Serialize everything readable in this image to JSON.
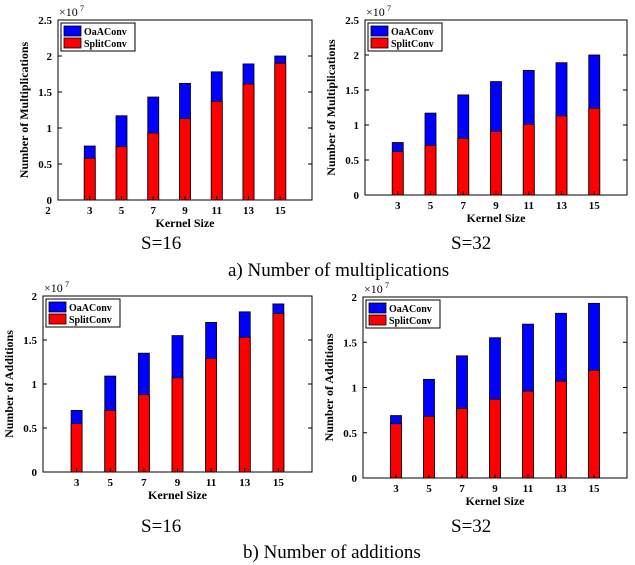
{
  "colors": {
    "oaaconv": "#0000ff",
    "splitconv": "#ff0000"
  },
  "legend_names": [
    "OaAConv",
    "SplitConv"
  ],
  "captions": {
    "multiplications": "a) Number of multiplications",
    "additions": "b) Number of additions"
  },
  "panel_labels": [
    "S=16",
    "S=32",
    "S=16",
    "S=32"
  ],
  "chart_data": [
    {
      "type": "bar",
      "xlabel": "Kernel Size",
      "ylabel": "Number of Multiplications",
      "exponent_label": "×10",
      "exponent_power": "7",
      "categories": [
        "3",
        "5",
        "7",
        "9",
        "11",
        "13",
        "15"
      ],
      "extra_xtick_label": "2",
      "ylim": [
        0,
        2.5
      ],
      "yticks": [
        "0",
        "0.5",
        "1",
        "1.5",
        "2",
        "2.5"
      ],
      "series": [
        {
          "name": "OaAConv",
          "values": [
            0.75,
            1.17,
            1.43,
            1.62,
            1.78,
            1.89,
            2.0
          ]
        },
        {
          "name": "SplitConv",
          "values": [
            0.58,
            0.74,
            0.93,
            1.13,
            1.37,
            1.61,
            1.9
          ]
        }
      ],
      "legend": "top-left",
      "grid": false
    },
    {
      "type": "bar",
      "xlabel": "Kernel Size",
      "ylabel": "Number of Multiplications",
      "exponent_label": "×10",
      "exponent_power": "7",
      "categories": [
        "3",
        "5",
        "7",
        "9",
        "11",
        "13",
        "15"
      ],
      "ylim": [
        0,
        2.5
      ],
      "yticks": [
        "0",
        "0.5",
        "1",
        "1.5",
        "2",
        "2.5"
      ],
      "series": [
        {
          "name": "OaAConv",
          "values": [
            0.75,
            1.17,
            1.43,
            1.62,
            1.78,
            1.89,
            2.0
          ]
        },
        {
          "name": "SplitConv",
          "values": [
            0.62,
            0.71,
            0.81,
            0.91,
            1.01,
            1.13,
            1.24
          ]
        }
      ],
      "legend": "top-left",
      "grid": false
    },
    {
      "type": "bar",
      "xlabel": "Kernel Size",
      "ylabel": "Number of Additions",
      "exponent_label": "×10",
      "exponent_power": "7",
      "categories": [
        "3",
        "5",
        "7",
        "9",
        "11",
        "13",
        "15"
      ],
      "ylim": [
        0,
        2
      ],
      "yticks": [
        "0",
        "0.5",
        "1",
        "1.5",
        "2"
      ],
      "series": [
        {
          "name": "OaAConv",
          "values": [
            0.7,
            1.09,
            1.35,
            1.55,
            1.7,
            1.82,
            1.91
          ]
        },
        {
          "name": "SplitConv",
          "values": [
            0.55,
            0.7,
            0.88,
            1.07,
            1.29,
            1.53,
            1.8
          ]
        }
      ],
      "legend": "top-left",
      "grid": false
    },
    {
      "type": "bar",
      "xlabel": "Kernel Size",
      "ylabel": "Number of Additions",
      "exponent_label": "×10",
      "exponent_power": "7",
      "categories": [
        "3",
        "5",
        "7",
        "9",
        "11",
        "13",
        "15"
      ],
      "ylim": [
        0,
        2
      ],
      "yticks": [
        "0",
        "0.5",
        "1",
        "1.5",
        "2"
      ],
      "series": [
        {
          "name": "OaAConv",
          "values": [
            0.69,
            1.09,
            1.35,
            1.55,
            1.7,
            1.82,
            1.93
          ]
        },
        {
          "name": "SplitConv",
          "values": [
            0.6,
            0.68,
            0.77,
            0.87,
            0.96,
            1.07,
            1.19
          ]
        }
      ],
      "legend": "top-left",
      "grid": false
    }
  ]
}
